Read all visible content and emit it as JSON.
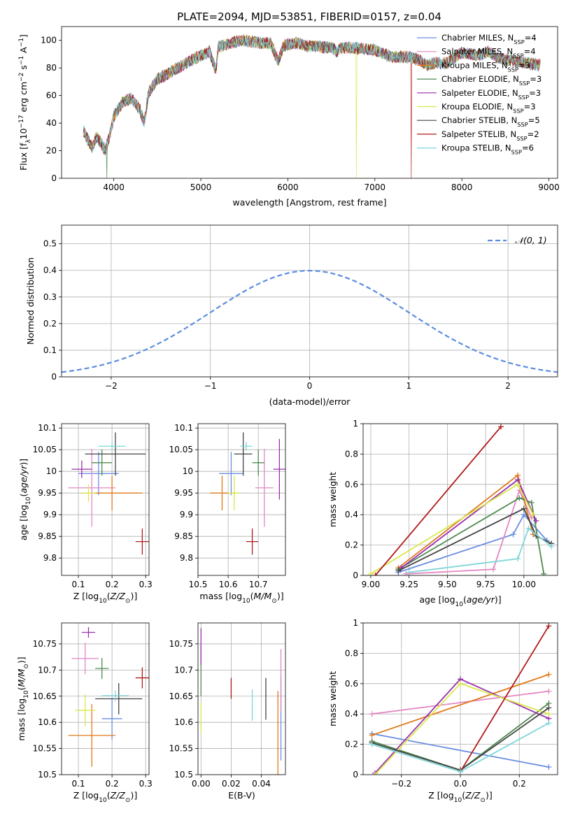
{
  "title": "PLATE=2094, MJD=53851, FIBERID=0157, z=0.04",
  "legend_series": [
    {
      "name": "Chabrier MILES, N",
      "sub": "SSP",
      "tail": "=4",
      "color": "#6a8ee0"
    },
    {
      "name": "Salpeter MILES, N",
      "sub": "SSP",
      "tail": "=4",
      "color": "#e486c3"
    },
    {
      "name": "Kroupa MILES, N",
      "sub": "SSP",
      "tail": "=3",
      "color": "#e07a1c"
    },
    {
      "name": "Chabrier ELODIE, N",
      "sub": "SSP",
      "tail": "=3",
      "color": "#4f8a4f"
    },
    {
      "name": "Salpeter ELODIE, N",
      "sub": "SSP",
      "tail": "=3",
      "color": "#9b2fae"
    },
    {
      "name": "Kroupa ELODIE, N",
      "sub": "SSP",
      "tail": "=3",
      "color": "#d9e84a"
    },
    {
      "name": "Chabrier STELIB, N",
      "sub": "SSP",
      "tail": "=5",
      "color": "#444444"
    },
    {
      "name": "Salpeter STELIB, N",
      "sub": "SSP",
      "tail": "=2",
      "color": "#b01b1b"
    },
    {
      "name": "Kroupa STELIB, N",
      "sub": "SSP",
      "tail": "=6",
      "color": "#7fd6d8"
    }
  ],
  "chart_data": [
    {
      "id": "spectrum",
      "type": "line",
      "xlabel": "wavelength [Angstrom, rest frame]",
      "ylabel": "Flux [f",
      "xlim": [
        3400,
        9100
      ],
      "ylim": [
        0,
        110
      ],
      "xticks": [
        4000,
        5000,
        6000,
        7000,
        8000,
        9000
      ],
      "yticks": [
        0,
        20,
        40,
        60,
        80,
        100
      ],
      "grid": false,
      "legend": "top-right",
      "x": [
        3650,
        3700,
        3750,
        3800,
        3850,
        3900,
        3950,
        4000,
        4100,
        4200,
        4300,
        4350,
        4400,
        4500,
        4600,
        4700,
        4800,
        4900,
        5000,
        5100,
        5175,
        5200,
        5300,
        5400,
        5500,
        5600,
        5700,
        5800,
        5890,
        5950,
        6000,
        6100,
        6200,
        6300,
        6400,
        6500,
        6563,
        6600,
        6700,
        6800,
        6900,
        7000,
        7100,
        7200,
        7300,
        7400,
        7500,
        7600,
        7700,
        7800,
        7900,
        8000,
        8100,
        8200,
        8300,
        8400,
        8500,
        8600,
        8700,
        8800,
        8900
      ],
      "y": [
        35,
        28,
        22,
        30,
        26,
        20,
        30,
        45,
        55,
        58,
        50,
        40,
        62,
        72,
        75,
        79,
        82,
        86,
        89,
        92,
        78,
        95,
        97,
        99,
        100,
        99,
        98,
        98,
        85,
        96,
        97,
        98,
        96,
        96,
        95,
        95,
        92,
        94,
        95,
        94,
        94,
        93,
        90,
        88,
        88,
        88,
        86,
        82,
        84,
        83,
        87,
        91,
        90,
        89,
        92,
        88,
        86,
        85,
        84,
        83,
        82
      ],
      "dropouts": [
        {
          "x": 3920,
          "series": 3
        },
        {
          "x": 6790,
          "series": 5
        },
        {
          "x": 7420,
          "series": 7
        }
      ]
    },
    {
      "id": "residual_hist",
      "type": "bar",
      "xlabel": "(data-model)/error",
      "ylabel": "Normed distribution",
      "xlim": [
        -2.5,
        2.5
      ],
      "ylim": [
        0,
        0.57
      ],
      "xticks": [
        -2,
        -1,
        0,
        1,
        2
      ],
      "yticks": [
        0.0,
        0.1,
        0.2,
        0.3,
        0.4,
        0.5
      ],
      "grid": true,
      "legend": "top-right",
      "reference": {
        "name": "𝒩(0, 1)",
        "color": "#5b8de0"
      }
    },
    {
      "id": "age_vs_Z",
      "type": "scatter",
      "xlabel": "Z [log",
      "ylabel": "age  [log",
      "xlim": [
        0.05,
        0.31
      ],
      "ylim": [
        9.76,
        10.11
      ],
      "xticks": [
        0.1,
        0.2,
        0.3
      ],
      "yticks": [
        9.8,
        9.85,
        9.9,
        9.95,
        10.0,
        10.05,
        10.1
      ],
      "grid": true,
      "points": [
        {
          "x": 0.16,
          "y": 9.995,
          "xerr": 0.06,
          "yerr": 0.05
        },
        {
          "x": 0.14,
          "y": 9.962,
          "xerr": 0.07,
          "yerr": 0.09
        },
        {
          "x": 0.2,
          "y": 9.95,
          "xerr": 0.09,
          "yerr": 0.04
        },
        {
          "x": 0.17,
          "y": 10.02,
          "xerr": 0.03,
          "yerr": 0.03
        },
        {
          "x": 0.11,
          "y": 10.005,
          "xerr": 0.03,
          "yerr": 0.02
        },
        {
          "x": 0.13,
          "y": 9.95,
          "xerr": 0.02,
          "yerr": 0.02
        },
        {
          "x": 0.21,
          "y": 10.04,
          "xerr": 0.09,
          "yerr": 0.05
        },
        {
          "x": 0.29,
          "y": 9.838,
          "xerr": 0.02,
          "yerr": 0.03
        },
        {
          "x": 0.2,
          "y": 10.058,
          "xerr": 0.04,
          "yerr": 0.01
        }
      ]
    },
    {
      "id": "age_vs_mass",
      "type": "scatter",
      "xlabel": "mass [log",
      "ylabel": "",
      "xlim": [
        10.5,
        10.79
      ],
      "ylim": [
        9.76,
        10.11
      ],
      "xticks": [
        10.5,
        10.6,
        10.7
      ],
      "yticks": [
        9.8,
        9.85,
        9.9,
        9.95,
        10.0,
        10.05,
        10.1
      ],
      "grid": true,
      "points": [
        {
          "x": 10.61,
          "y": 9.995,
          "xerr": 0.04,
          "yerr": 0.05
        },
        {
          "x": 10.72,
          "y": 9.962,
          "xerr": 0.03,
          "yerr": 0.09
        },
        {
          "x": 10.58,
          "y": 9.95,
          "xerr": 0.04,
          "yerr": 0.04
        },
        {
          "x": 10.7,
          "y": 10.02,
          "xerr": 0.02,
          "yerr": 0.03
        },
        {
          "x": 10.77,
          "y": 10.005,
          "xerr": 0.02,
          "yerr": 0.07
        },
        {
          "x": 10.62,
          "y": 9.95,
          "xerr": 0.02,
          "yerr": 0.04
        },
        {
          "x": 10.65,
          "y": 10.04,
          "xerr": 0.03,
          "yerr": 0.05
        },
        {
          "x": 10.68,
          "y": 9.838,
          "xerr": 0.02,
          "yerr": 0.03
        },
        {
          "x": 10.66,
          "y": 10.058,
          "xerr": 0.02,
          "yerr": 0.01
        }
      ]
    },
    {
      "id": "mass_weight_vs_age",
      "type": "line",
      "xlabel": "age  [log",
      "ylabel": "mass weight",
      "xlim": [
        8.95,
        10.22
      ],
      "ylim": [
        0,
        1
      ],
      "xticks": [
        9.0,
        9.25,
        9.5,
        9.75,
        10.0
      ],
      "xticklabels": [
        "9.00",
        "9.25",
        "9.50",
        "9.75",
        "10.00"
      ],
      "yticks": [
        0,
        0.2,
        0.4,
        0.6,
        0.8,
        1.0
      ],
      "grid": true,
      "series": [
        {
          "points": [
            [
              9.18,
              0.02
            ],
            [
              9.93,
              0.27
            ],
            [
              10.0,
              0.4
            ],
            [
              10.15,
              0.23
            ]
          ]
        },
        {
          "points": [
            [
              9.23,
              0.01
            ],
            [
              9.8,
              0.04
            ],
            [
              9.97,
              0.56
            ],
            [
              10.05,
              0.38
            ]
          ]
        },
        {
          "points": [
            [
              9.18,
              0.05
            ],
            [
              9.96,
              0.66
            ],
            [
              10.06,
              0.27
            ]
          ]
        },
        {
          "points": [
            [
              9.18,
              0.04
            ],
            [
              9.97,
              0.51
            ],
            [
              10.05,
              0.48
            ],
            [
              10.13,
              0.01
            ]
          ]
        },
        {
          "points": [
            [
              9.2,
              0.05
            ],
            [
              9.96,
              0.63
            ],
            [
              10.08,
              0.36
            ]
          ]
        },
        {
          "points": [
            [
              9.0,
              0.01
            ],
            [
              9.96,
              0.6
            ],
            [
              10.06,
              0.4
            ]
          ]
        },
        {
          "points": [
            [
              9.18,
              0.03
            ],
            [
              10.0,
              0.44
            ],
            [
              10.08,
              0.26
            ],
            [
              10.18,
              0.21
            ]
          ]
        },
        {
          "points": [
            [
              9.03,
              0.0
            ],
            [
              9.85,
              0.98
            ]
          ]
        },
        {
          "points": [
            [
              9.25,
              0.02
            ],
            [
              9.96,
              0.11
            ],
            [
              10.03,
              0.31
            ],
            [
              10.18,
              0.19
            ]
          ]
        }
      ]
    },
    {
      "id": "mass_vs_Z",
      "type": "scatter",
      "xlabel": "Z [log",
      "ylabel": "mass [log",
      "xlim": [
        0.05,
        0.31
      ],
      "ylim": [
        10.5,
        10.79
      ],
      "xticks": [
        0.1,
        0.2,
        0.3
      ],
      "yticks": [
        10.5,
        10.55,
        10.6,
        10.65,
        10.7,
        10.75
      ],
      "grid": true,
      "points": [
        {
          "x": 0.2,
          "y": 10.607,
          "xerr": 0.03,
          "yerr": 0.04
        },
        {
          "x": 0.12,
          "y": 10.722,
          "xerr": 0.04,
          "yerr": 0.03
        },
        {
          "x": 0.14,
          "y": 10.575,
          "xerr": 0.07,
          "yerr": 0.06
        },
        {
          "x": 0.17,
          "y": 10.703,
          "xerr": 0.02,
          "yerr": 0.02
        },
        {
          "x": 0.13,
          "y": 10.772,
          "xerr": 0.02,
          "yerr": 0.01
        },
        {
          "x": 0.12,
          "y": 10.623,
          "xerr": 0.03,
          "yerr": 0.03
        },
        {
          "x": 0.22,
          "y": 10.645,
          "xerr": 0.07,
          "yerr": 0.03
        },
        {
          "x": 0.29,
          "y": 10.685,
          "xerr": 0.02,
          "yerr": 0.02
        },
        {
          "x": 0.21,
          "y": 10.651,
          "xerr": 0.04,
          "yerr": 0.01
        }
      ]
    },
    {
      "id": "mass_vs_ebv",
      "type": "scatter",
      "xlabel": "E(B-V)",
      "ylabel": "",
      "xlim": [
        -0.002,
        0.056
      ],
      "ylim": [
        10.5,
        10.79
      ],
      "xticks": [
        0.0,
        0.02,
        0.04
      ],
      "xticklabels": [
        "0.00",
        "0.02",
        "0.04"
      ],
      "yticks": [
        10.5,
        10.55,
        10.6,
        10.65,
        10.7,
        10.75
      ],
      "grid": true,
      "points": [
        {
          "x": 0.053,
          "y": 10.607,
          "yerr": 0.08
        },
        {
          "x": 0.053,
          "y": 10.68,
          "yerr": 0.06
        },
        {
          "x": 0.051,
          "y": 10.58,
          "yerr": 0.08
        },
        {
          "x": 0.0,
          "y": 10.7,
          "yerr": 0.05
        },
        {
          "x": 0.0,
          "y": 10.745,
          "yerr": 0.035
        },
        {
          "x": 0.0,
          "y": 10.61,
          "yerr": 0.03
        },
        {
          "x": 0.043,
          "y": 10.645,
          "yerr": 0.04
        },
        {
          "x": 0.02,
          "y": 10.665,
          "yerr": 0.02
        },
        {
          "x": 0.034,
          "y": 10.633,
          "yerr": 0.03
        }
      ]
    },
    {
      "id": "mass_weight_vs_Z",
      "type": "line",
      "xlabel": "Z [log",
      "ylabel": "mass weight",
      "xlim": [
        -0.33,
        0.33
      ],
      "ylim": [
        0,
        1
      ],
      "xticks": [
        -0.2,
        0.0,
        0.2
      ],
      "xticklabels": [
        "−0.2",
        "0.0",
        "0.2"
      ],
      "yticks": [
        0,
        0.2,
        0.4,
        0.6,
        0.8,
        1.0
      ],
      "grid": true,
      "series": [
        {
          "points": [
            [
              -0.3,
              0.27
            ],
            [
              0.3,
              0.05
            ]
          ]
        },
        {
          "points": [
            [
              -0.3,
              0.4
            ],
            [
              0.3,
              0.55
            ]
          ]
        },
        {
          "points": [
            [
              -0.3,
              0.26
            ],
            [
              0.3,
              0.66
            ]
          ]
        },
        {
          "points": [
            [
              -0.3,
              0.22
            ],
            [
              0.0,
              0.03
            ],
            [
              0.3,
              0.47
            ]
          ]
        },
        {
          "points": [
            [
              -0.29,
              0.01
            ],
            [
              0.0,
              0.63
            ],
            [
              0.3,
              0.37
            ]
          ]
        },
        {
          "points": [
            [
              -0.29,
              0.0
            ],
            [
              0.0,
              0.6
            ],
            [
              0.3,
              0.4
            ]
          ]
        },
        {
          "points": [
            [
              -0.3,
              0.21
            ],
            [
              0.0,
              0.03
            ],
            [
              0.3,
              0.44
            ]
          ]
        },
        {
          "points": [
            [
              0.0,
              0.02
            ],
            [
              0.3,
              0.98
            ]
          ]
        },
        {
          "points": [
            [
              -0.3,
              0.2
            ],
            [
              0.0,
              0.02
            ],
            [
              0.3,
              0.34
            ]
          ]
        }
      ]
    }
  ]
}
